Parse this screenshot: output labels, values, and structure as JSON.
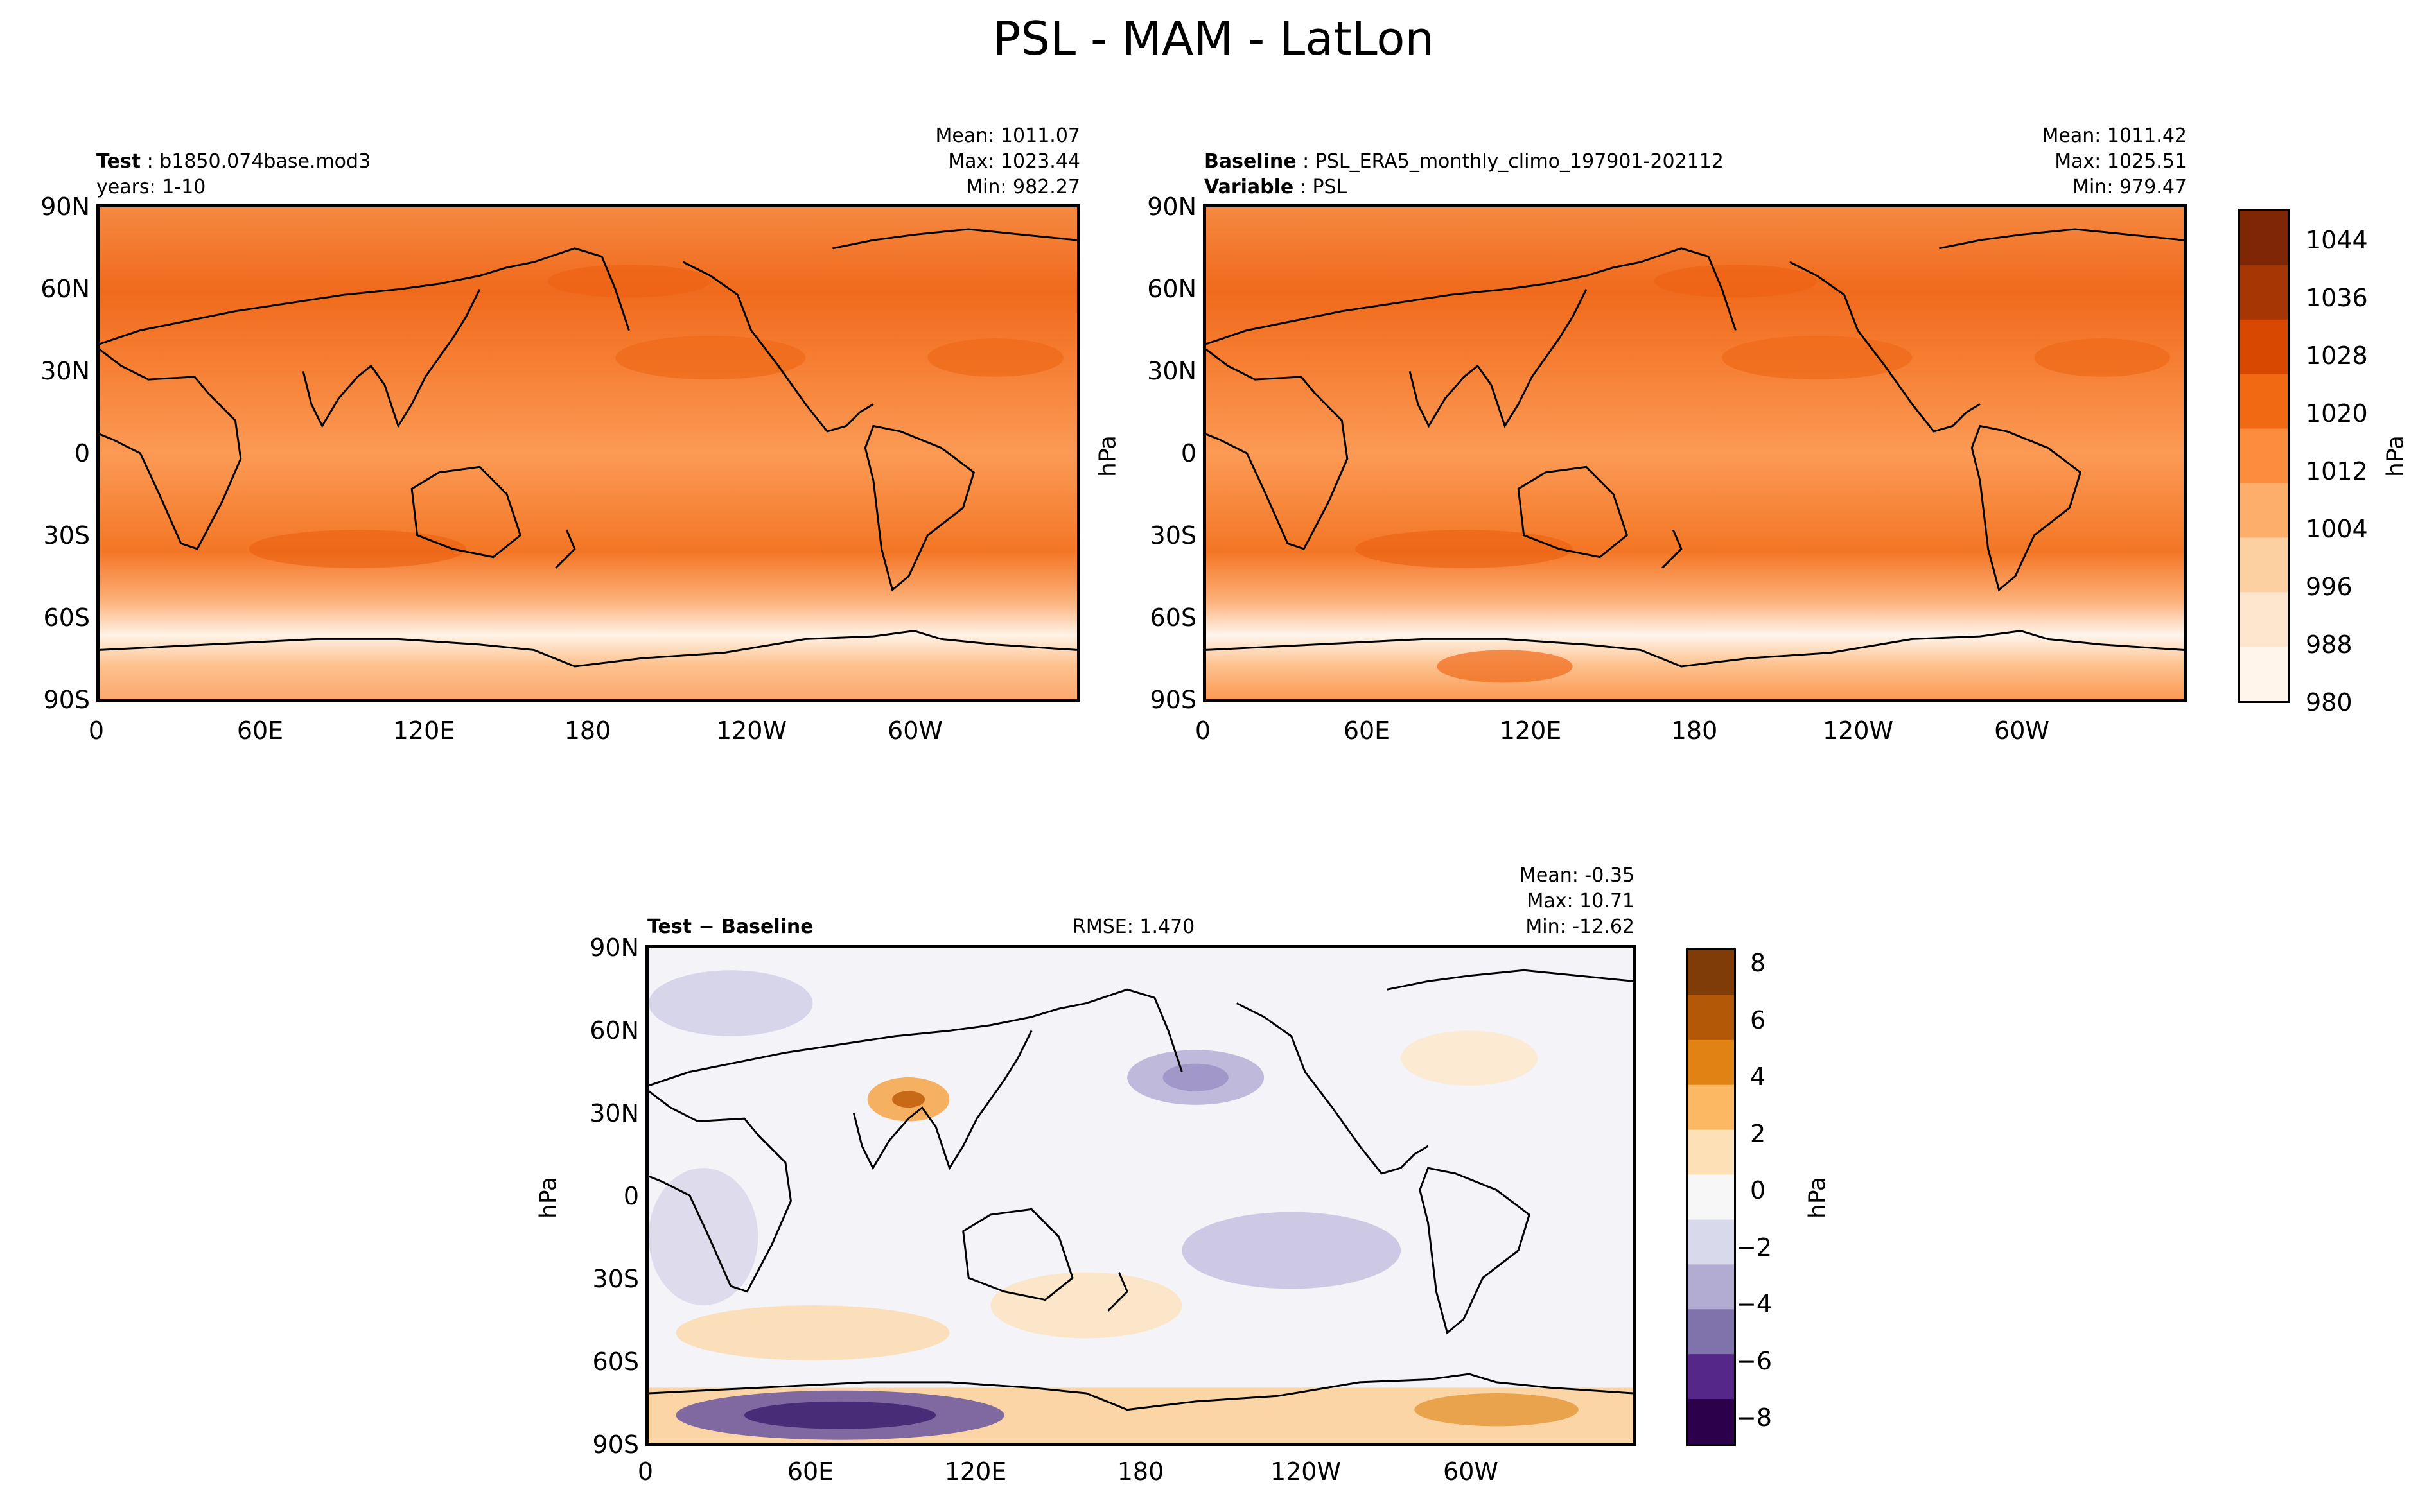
{
  "figure": {
    "title": "PSL - MAM - LatLon"
  },
  "panels": {
    "test": {
      "label_bold": "Test",
      "label_value": "b1850.074base.mod3",
      "line2": "years: 1-10",
      "mean": "Mean: 1011.07",
      "max": "Max: 1023.44",
      "min": "Min: 982.27"
    },
    "baseline": {
      "label_bold": "Baseline",
      "label_value": "PSL_ERA5_monthly_climo_197901-202112",
      "line2_bold": "Variable",
      "line2_value": "PSL",
      "mean": "Mean: 1011.42",
      "max": "Max: 1025.51",
      "min": "Min: 979.47",
      "unit": "hPa"
    },
    "diff": {
      "label": "Test − Baseline",
      "rmse": "RMSE: 1.470",
      "mean": "Mean: -0.35",
      "max": "Max: 10.71",
      "min": "Min: -12.62",
      "unit": "hPa"
    }
  },
  "axes": {
    "lat_ticks": [
      "90N",
      "60N",
      "30N",
      "0",
      "30S",
      "60S",
      "90S"
    ],
    "lon_ticks": [
      "0",
      "60E",
      "120E",
      "180",
      "120W",
      "60W"
    ]
  },
  "colorbars": {
    "psl": {
      "unit": "hPa",
      "range": [
        980,
        1048
      ],
      "tick_labels": [
        "1044",
        "1036",
        "1028",
        "1020",
        "1012",
        "1004",
        "996",
        "988",
        "980"
      ],
      "colors": [
        "#fff5eb",
        "#fee6ce",
        "#fdd0a2",
        "#fdae6b",
        "#fd8d3c",
        "#f16913",
        "#d94801",
        "#a63603",
        "#7f2704"
      ]
    },
    "diff": {
      "unit": "hPa",
      "range": [
        -9,
        8.5
      ],
      "tick_labels": [
        "8",
        "6",
        "4",
        "2",
        "0",
        "−2",
        "−4",
        "−6",
        "−8"
      ],
      "colors": [
        "#2d004b",
        "#542788",
        "#8073ac",
        "#b2abd2",
        "#d8daeb",
        "#f7f7f7",
        "#fee0b6",
        "#fdb863",
        "#e08214",
        "#b35806",
        "#7f3b08"
      ]
    }
  },
  "chart_data": [
    {
      "type": "heatmap",
      "title": "Test: b1850.074base.mod3",
      "variable": "PSL",
      "units": "hPa",
      "stats": {
        "mean": 1011.07,
        "max": 1023.44,
        "min": 982.27
      },
      "xlim": [
        0,
        360
      ],
      "ylim": [
        -90,
        90
      ]
    },
    {
      "type": "heatmap",
      "title": "Baseline: PSL_ERA5_monthly_climo_197901-202112",
      "variable": "PSL",
      "units": "hPa",
      "stats": {
        "mean": 1011.42,
        "max": 1025.51,
        "min": 979.47
      },
      "xlim": [
        0,
        360
      ],
      "ylim": [
        -90,
        90
      ]
    },
    {
      "type": "heatmap",
      "title": "Test − Baseline",
      "variable": "PSL",
      "units": "hPa",
      "stats": {
        "mean": -0.35,
        "max": 10.71,
        "min": -12.62,
        "rmse": 1.47
      },
      "xlim": [
        0,
        360
      ],
      "ylim": [
        -90,
        90
      ]
    }
  ]
}
